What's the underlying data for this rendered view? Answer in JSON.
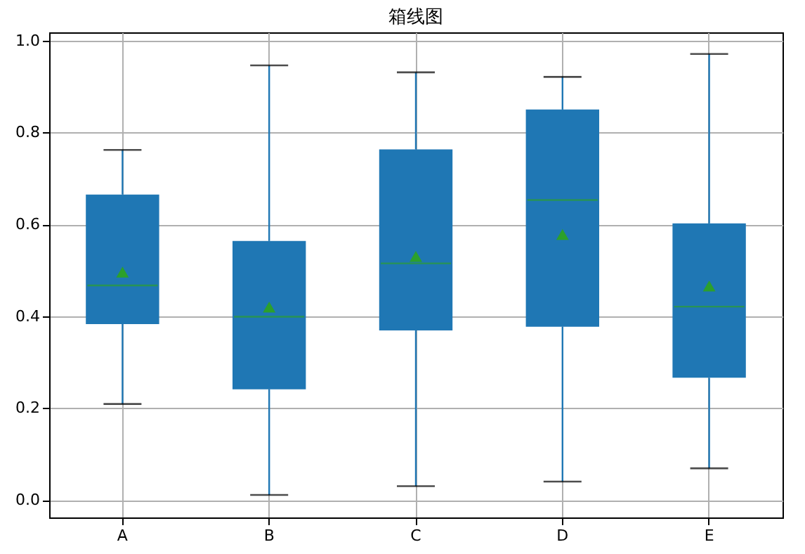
{
  "chart_data": {
    "type": "box",
    "title": "箱线图",
    "categories": [
      "A",
      "B",
      "C",
      "D",
      "E"
    ],
    "series": [
      {
        "color": "#1f77b4",
        "boxes": [
          {
            "low": 0.209,
            "q1": 0.383,
            "median": 0.467,
            "q3": 0.665,
            "high": 0.762,
            "mean": 0.496
          },
          {
            "low": 0.011,
            "q1": 0.241,
            "median": 0.399,
            "q3": 0.564,
            "high": 0.946,
            "mean": 0.42
          },
          {
            "low": 0.03,
            "q1": 0.369,
            "median": 0.515,
            "q3": 0.763,
            "high": 0.931,
            "mean": 0.53
          },
          {
            "low": 0.04,
            "q1": 0.377,
            "median": 0.653,
            "q3": 0.85,
            "high": 0.921,
            "mean": 0.578
          },
          {
            "low": 0.069,
            "q1": 0.266,
            "median": 0.421,
            "q3": 0.602,
            "high": 0.971,
            "mean": 0.466
          }
        ]
      }
    ],
    "ylim": [
      -0.038,
      1.018
    ],
    "yticks": [
      {
        "value": 0,
        "label": "0.0"
      },
      {
        "value": 0.2,
        "label": "0.2"
      },
      {
        "value": 0.4,
        "label": "0.4"
      },
      {
        "value": 0.6,
        "label": "0.6"
      },
      {
        "value": 0.8,
        "label": "0.8"
      },
      {
        "value": 1,
        "label": "1.0"
      }
    ],
    "grid": true,
    "marker": "triangle"
  }
}
